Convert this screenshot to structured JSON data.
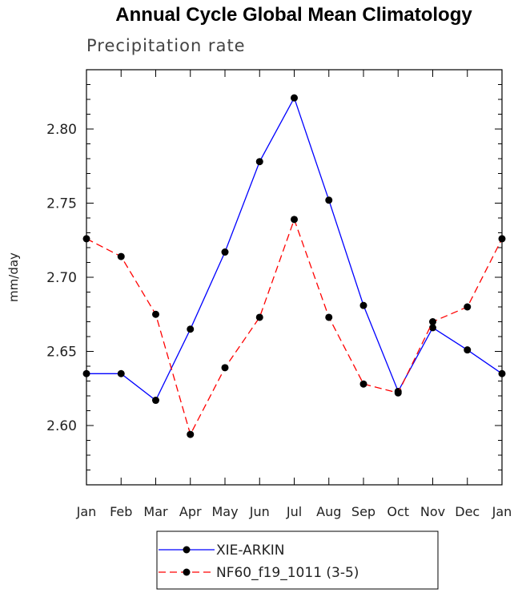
{
  "chart_data": {
    "type": "line",
    "title": "Annual Cycle Global Mean Climatology",
    "subtitle": "Precipitation rate",
    "xlabel": "",
    "ylabel": "mm/day",
    "categories": [
      "Jan",
      "Feb",
      "Mar",
      "Apr",
      "May",
      "Jun",
      "Jul",
      "Aug",
      "Sep",
      "Oct",
      "Nov",
      "Dec",
      "Jan"
    ],
    "ylim": [
      2.56,
      2.84
    ],
    "yticks": [
      2.6,
      2.65,
      2.7,
      2.75,
      2.8
    ],
    "ytick_labels": [
      "2.60",
      "2.65",
      "2.70",
      "2.75",
      "2.80"
    ],
    "grid": false,
    "legend_position": "bottom-center",
    "series": [
      {
        "name": "XIE-ARKIN",
        "color": "#0000ff",
        "line_style": "solid",
        "marker": "circle",
        "values": [
          2.635,
          2.635,
          2.617,
          2.665,
          2.717,
          2.778,
          2.821,
          2.752,
          2.681,
          2.623,
          2.666,
          2.651,
          2.635
        ]
      },
      {
        "name": "NF60_f19_1011 (3-5)",
        "color": "#ff0000",
        "line_style": "dashed",
        "marker": "circle",
        "values": [
          2.726,
          2.714,
          2.675,
          2.594,
          2.639,
          2.673,
          2.739,
          2.673,
          2.628,
          2.622,
          2.67,
          2.68,
          2.726
        ]
      }
    ]
  }
}
